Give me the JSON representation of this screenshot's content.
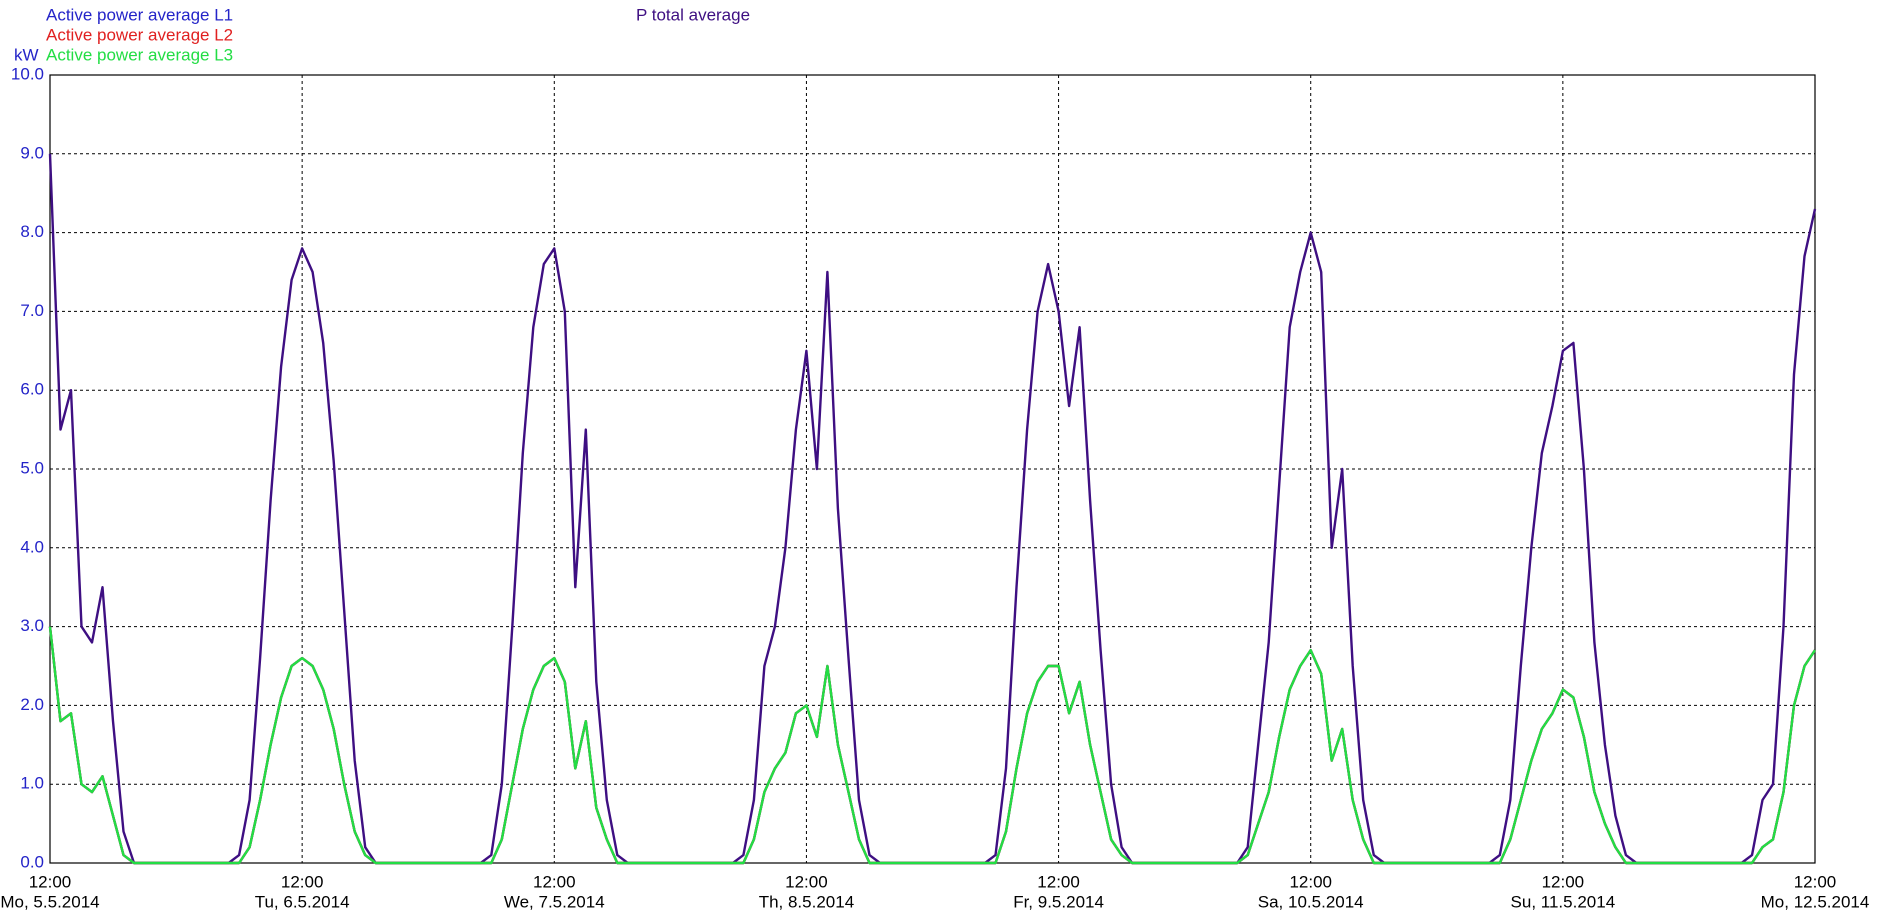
{
  "chart_data": {
    "type": "line",
    "y_label": "kW",
    "legend": "top-left",
    "grid": true,
    "xlim": [
      "2014-05-05 12:00",
      "2014-05-12 12:00"
    ],
    "xticks": [
      {
        "value": "2014-05-05 12:00",
        "label": "12:00",
        "sublabel": "Mo, 5.5.2014"
      },
      {
        "value": "2014-05-06 12:00",
        "label": "12:00",
        "sublabel": "Tu, 6.5.2014"
      },
      {
        "value": "2014-05-07 12:00",
        "label": "12:00",
        "sublabel": "We, 7.5.2014"
      },
      {
        "value": "2014-05-08 12:00",
        "label": "12:00",
        "sublabel": "Th, 8.5.2014"
      },
      {
        "value": "2014-05-09 12:00",
        "label": "12:00",
        "sublabel": "Fr, 9.5.2014"
      },
      {
        "value": "2014-05-10 12:00",
        "label": "12:00",
        "sublabel": "Sa, 10.5.2014"
      },
      {
        "value": "2014-05-11 12:00",
        "label": "12:00",
        "sublabel": "Su, 11.5.2014"
      },
      {
        "value": "2014-05-12 12:00",
        "label": "12:00",
        "sublabel": "Mo, 12.5.2014"
      }
    ],
    "ylim": [
      0,
      10
    ],
    "yticks": [
      {
        "value": 0,
        "label": "0.0"
      },
      {
        "value": 1,
        "label": "1.0"
      },
      {
        "value": 2,
        "label": "2.0"
      },
      {
        "value": 3,
        "label": "3.0"
      },
      {
        "value": 4,
        "label": "4.0"
      },
      {
        "value": 5,
        "label": "5.0"
      },
      {
        "value": 6,
        "label": "6.0"
      },
      {
        "value": 7,
        "label": "7.0"
      },
      {
        "value": 8,
        "label": "8.0"
      },
      {
        "value": 9,
        "label": "9.0"
      },
      {
        "value": 10,
        "label": "10.0"
      }
    ],
    "x": [
      "2014-05-05 12:00",
      "2014-05-05 13:00",
      "2014-05-05 14:00",
      "2014-05-05 15:00",
      "2014-05-05 16:00",
      "2014-05-05 17:00",
      "2014-05-05 18:00",
      "2014-05-05 19:00",
      "2014-05-05 20:00",
      "2014-05-05 21:00",
      "2014-05-05 22:00",
      "2014-05-05 23:00",
      "2014-05-06 00:00",
      "2014-05-06 01:00",
      "2014-05-06 02:00",
      "2014-05-06 03:00",
      "2014-05-06 04:00",
      "2014-05-06 05:00",
      "2014-05-06 06:00",
      "2014-05-06 07:00",
      "2014-05-06 08:00",
      "2014-05-06 09:00",
      "2014-05-06 10:00",
      "2014-05-06 11:00",
      "2014-05-06 12:00",
      "2014-05-06 13:00",
      "2014-05-06 14:00",
      "2014-05-06 15:00",
      "2014-05-06 16:00",
      "2014-05-06 17:00",
      "2014-05-06 18:00",
      "2014-05-06 19:00",
      "2014-05-06 20:00",
      "2014-05-06 21:00",
      "2014-05-06 22:00",
      "2014-05-06 23:00",
      "2014-05-07 00:00",
      "2014-05-07 01:00",
      "2014-05-07 02:00",
      "2014-05-07 03:00",
      "2014-05-07 04:00",
      "2014-05-07 05:00",
      "2014-05-07 06:00",
      "2014-05-07 07:00",
      "2014-05-07 08:00",
      "2014-05-07 09:00",
      "2014-05-07 10:00",
      "2014-05-07 11:00",
      "2014-05-07 12:00",
      "2014-05-07 13:00",
      "2014-05-07 14:00",
      "2014-05-07 15:00",
      "2014-05-07 16:00",
      "2014-05-07 17:00",
      "2014-05-07 18:00",
      "2014-05-07 19:00",
      "2014-05-07 20:00",
      "2014-05-07 21:00",
      "2014-05-07 22:00",
      "2014-05-07 23:00",
      "2014-05-08 00:00",
      "2014-05-08 01:00",
      "2014-05-08 02:00",
      "2014-05-08 03:00",
      "2014-05-08 04:00",
      "2014-05-08 05:00",
      "2014-05-08 06:00",
      "2014-05-08 07:00",
      "2014-05-08 08:00",
      "2014-05-08 09:00",
      "2014-05-08 10:00",
      "2014-05-08 11:00",
      "2014-05-08 12:00",
      "2014-05-08 13:00",
      "2014-05-08 14:00",
      "2014-05-08 15:00",
      "2014-05-08 16:00",
      "2014-05-08 17:00",
      "2014-05-08 18:00",
      "2014-05-08 19:00",
      "2014-05-08 20:00",
      "2014-05-08 21:00",
      "2014-05-08 22:00",
      "2014-05-08 23:00",
      "2014-05-09 00:00",
      "2014-05-09 01:00",
      "2014-05-09 02:00",
      "2014-05-09 03:00",
      "2014-05-09 04:00",
      "2014-05-09 05:00",
      "2014-05-09 06:00",
      "2014-05-09 07:00",
      "2014-05-09 08:00",
      "2014-05-09 09:00",
      "2014-05-09 10:00",
      "2014-05-09 11:00",
      "2014-05-09 12:00",
      "2014-05-09 13:00",
      "2014-05-09 14:00",
      "2014-05-09 15:00",
      "2014-05-09 16:00",
      "2014-05-09 17:00",
      "2014-05-09 18:00",
      "2014-05-09 19:00",
      "2014-05-09 20:00",
      "2014-05-09 21:00",
      "2014-05-09 22:00",
      "2014-05-09 23:00",
      "2014-05-10 00:00",
      "2014-05-10 01:00",
      "2014-05-10 02:00",
      "2014-05-10 03:00",
      "2014-05-10 04:00",
      "2014-05-10 05:00",
      "2014-05-10 06:00",
      "2014-05-10 07:00",
      "2014-05-10 08:00",
      "2014-05-10 09:00",
      "2014-05-10 10:00",
      "2014-05-10 11:00",
      "2014-05-10 12:00",
      "2014-05-10 13:00",
      "2014-05-10 14:00",
      "2014-05-10 15:00",
      "2014-05-10 16:00",
      "2014-05-10 17:00",
      "2014-05-10 18:00",
      "2014-05-10 19:00",
      "2014-05-10 20:00",
      "2014-05-10 21:00",
      "2014-05-10 22:00",
      "2014-05-10 23:00",
      "2014-05-11 00:00",
      "2014-05-11 01:00",
      "2014-05-11 02:00",
      "2014-05-11 03:00",
      "2014-05-11 04:00",
      "2014-05-11 05:00",
      "2014-05-11 06:00",
      "2014-05-11 07:00",
      "2014-05-11 08:00",
      "2014-05-11 09:00",
      "2014-05-11 10:00",
      "2014-05-11 11:00",
      "2014-05-11 12:00",
      "2014-05-11 13:00",
      "2014-05-11 14:00",
      "2014-05-11 15:00",
      "2014-05-11 16:00",
      "2014-05-11 17:00",
      "2014-05-11 18:00",
      "2014-05-11 19:00",
      "2014-05-11 20:00",
      "2014-05-11 21:00",
      "2014-05-11 22:00",
      "2014-05-11 23:00",
      "2014-05-12 00:00",
      "2014-05-12 01:00",
      "2014-05-12 02:00",
      "2014-05-12 03:00",
      "2014-05-12 04:00",
      "2014-05-12 05:00",
      "2014-05-12 06:00",
      "2014-05-12 07:00",
      "2014-05-12 08:00",
      "2014-05-12 09:00",
      "2014-05-12 10:00",
      "2014-05-12 11:00",
      "2014-05-12 12:00"
    ],
    "series": [
      {
        "name": "Active power average L1",
        "color": "#2424c8",
        "values": [
          3.0,
          1.8,
          1.9,
          1.0,
          0.9,
          1.1,
          0.6,
          0.1,
          0,
          0,
          0,
          0,
          0,
          0,
          0,
          0,
          0,
          0,
          0,
          0.2,
          0.8,
          1.5,
          2.1,
          2.5,
          2.6,
          2.5,
          2.2,
          1.7,
          1.0,
          0.4,
          0.1,
          0,
          0,
          0,
          0,
          0,
          0,
          0,
          0,
          0,
          0,
          0,
          0,
          0.3,
          1.0,
          1.7,
          2.2,
          2.5,
          2.6,
          2.3,
          1.2,
          1.8,
          0.7,
          0.3,
          0,
          0,
          0,
          0,
          0,
          0,
          0,
          0,
          0,
          0,
          0,
          0,
          0,
          0.3,
          0.9,
          1.2,
          1.4,
          1.9,
          2.0,
          1.6,
          2.5,
          1.5,
          0.9,
          0.3,
          0,
          0,
          0,
          0,
          0,
          0,
          0,
          0,
          0,
          0,
          0,
          0,
          0,
          0.4,
          1.2,
          1.9,
          2.3,
          2.5,
          2.5,
          1.9,
          2.3,
          1.5,
          0.9,
          0.3,
          0.1,
          0,
          0,
          0,
          0,
          0,
          0,
          0,
          0,
          0,
          0,
          0,
          0.1,
          0.5,
          0.9,
          1.6,
          2.2,
          2.5,
          2.7,
          2.4,
          1.3,
          1.7,
          0.8,
          0.3,
          0,
          0,
          0,
          0,
          0,
          0,
          0,
          0,
          0,
          0,
          0,
          0,
          0,
          0.3,
          0.8,
          1.3,
          1.7,
          1.9,
          2.2,
          2.1,
          1.6,
          0.9,
          0.5,
          0.2,
          0,
          0,
          0,
          0,
          0,
          0,
          0,
          0,
          0,
          0,
          0,
          0,
          0,
          0.2,
          0.3,
          0.9,
          2.0,
          2.5,
          2.7
        ]
      },
      {
        "name": "Active power average L2",
        "color": "#e02020",
        "values": [
          3.0,
          1.8,
          1.9,
          1.0,
          0.9,
          1.1,
          0.6,
          0.1,
          0,
          0,
          0,
          0,
          0,
          0,
          0,
          0,
          0,
          0,
          0,
          0.2,
          0.8,
          1.5,
          2.1,
          2.5,
          2.6,
          2.5,
          2.2,
          1.7,
          1.0,
          0.4,
          0.1,
          0,
          0,
          0,
          0,
          0,
          0,
          0,
          0,
          0,
          0,
          0,
          0,
          0.3,
          1.0,
          1.7,
          2.2,
          2.5,
          2.6,
          2.3,
          1.2,
          1.8,
          0.7,
          0.3,
          0,
          0,
          0,
          0,
          0,
          0,
          0,
          0,
          0,
          0,
          0,
          0,
          0,
          0.3,
          0.9,
          1.2,
          1.4,
          1.9,
          2.0,
          1.6,
          2.5,
          1.5,
          0.9,
          0.3,
          0,
          0,
          0,
          0,
          0,
          0,
          0,
          0,
          0,
          0,
          0,
          0,
          0,
          0.4,
          1.2,
          1.9,
          2.3,
          2.5,
          2.5,
          1.9,
          2.3,
          1.5,
          0.9,
          0.3,
          0.1,
          0,
          0,
          0,
          0,
          0,
          0,
          0,
          0,
          0,
          0,
          0,
          0.1,
          0.5,
          0.9,
          1.6,
          2.2,
          2.5,
          2.7,
          2.4,
          1.3,
          1.7,
          0.8,
          0.3,
          0,
          0,
          0,
          0,
          0,
          0,
          0,
          0,
          0,
          0,
          0,
          0,
          0,
          0.3,
          0.8,
          1.3,
          1.7,
          1.9,
          2.2,
          2.1,
          1.6,
          0.9,
          0.5,
          0.2,
          0,
          0,
          0,
          0,
          0,
          0,
          0,
          0,
          0,
          0,
          0,
          0,
          0,
          0.2,
          0.3,
          0.9,
          2.0,
          2.5,
          2.7
        ]
      },
      {
        "name": "Active power average L3",
        "color": "#22dd44",
        "values": [
          3.0,
          1.8,
          1.9,
          1.0,
          0.9,
          1.1,
          0.6,
          0.1,
          0,
          0,
          0,
          0,
          0,
          0,
          0,
          0,
          0,
          0,
          0,
          0.2,
          0.8,
          1.5,
          2.1,
          2.5,
          2.6,
          2.5,
          2.2,
          1.7,
          1.0,
          0.4,
          0.1,
          0,
          0,
          0,
          0,
          0,
          0,
          0,
          0,
          0,
          0,
          0,
          0,
          0.3,
          1.0,
          1.7,
          2.2,
          2.5,
          2.6,
          2.3,
          1.2,
          1.8,
          0.7,
          0.3,
          0,
          0,
          0,
          0,
          0,
          0,
          0,
          0,
          0,
          0,
          0,
          0,
          0,
          0.3,
          0.9,
          1.2,
          1.4,
          1.9,
          2.0,
          1.6,
          2.5,
          1.5,
          0.9,
          0.3,
          0,
          0,
          0,
          0,
          0,
          0,
          0,
          0,
          0,
          0,
          0,
          0,
          0,
          0.4,
          1.2,
          1.9,
          2.3,
          2.5,
          2.5,
          1.9,
          2.3,
          1.5,
          0.9,
          0.3,
          0.1,
          0,
          0,
          0,
          0,
          0,
          0,
          0,
          0,
          0,
          0,
          0,
          0.1,
          0.5,
          0.9,
          1.6,
          2.2,
          2.5,
          2.7,
          2.4,
          1.3,
          1.7,
          0.8,
          0.3,
          0,
          0,
          0,
          0,
          0,
          0,
          0,
          0,
          0,
          0,
          0,
          0,
          0,
          0.3,
          0.8,
          1.3,
          1.7,
          1.9,
          2.2,
          2.1,
          1.6,
          0.9,
          0.5,
          0.2,
          0,
          0,
          0,
          0,
          0,
          0,
          0,
          0,
          0,
          0,
          0,
          0,
          0,
          0.2,
          0.3,
          0.9,
          2.0,
          2.5,
          2.7
        ]
      },
      {
        "name": "P total average",
        "color": "#3e0f82",
        "values": [
          9.0,
          5.5,
          6.0,
          3.0,
          2.8,
          3.5,
          1.8,
          0.4,
          0,
          0,
          0,
          0,
          0,
          0,
          0,
          0,
          0,
          0,
          0.1,
          0.8,
          2.6,
          4.6,
          6.3,
          7.4,
          7.8,
          7.5,
          6.6,
          5.1,
          3.2,
          1.3,
          0.2,
          0,
          0,
          0,
          0,
          0,
          0,
          0,
          0,
          0,
          0,
          0,
          0.1,
          1.0,
          3.0,
          5.2,
          6.8,
          7.6,
          7.8,
          7.0,
          3.5,
          5.5,
          2.3,
          0.8,
          0.1,
          0,
          0,
          0,
          0,
          0,
          0,
          0,
          0,
          0,
          0,
          0,
          0.1,
          0.8,
          2.5,
          3.0,
          4.0,
          5.5,
          6.5,
          5.0,
          7.5,
          4.5,
          2.6,
          0.8,
          0.1,
          0,
          0,
          0,
          0,
          0,
          0,
          0,
          0,
          0,
          0,
          0,
          0.1,
          1.2,
          3.5,
          5.5,
          7.0,
          7.6,
          7.0,
          5.8,
          6.8,
          4.6,
          2.7,
          1.0,
          0.2,
          0,
          0,
          0,
          0,
          0,
          0,
          0,
          0,
          0,
          0,
          0,
          0.2,
          1.5,
          2.8,
          4.8,
          6.8,
          7.5,
          8.0,
          7.5,
          4.0,
          5.0,
          2.5,
          0.8,
          0.1,
          0,
          0,
          0,
          0,
          0,
          0,
          0,
          0,
          0,
          0,
          0,
          0.1,
          0.8,
          2.5,
          4.0,
          5.2,
          5.8,
          6.5,
          6.6,
          5.0,
          2.8,
          1.5,
          0.6,
          0.1,
          0,
          0,
          0,
          0,
          0,
          0,
          0,
          0,
          0,
          0,
          0,
          0.1,
          0.8,
          1.0,
          3.0,
          6.2,
          7.7,
          8.3
        ]
      }
    ]
  }
}
